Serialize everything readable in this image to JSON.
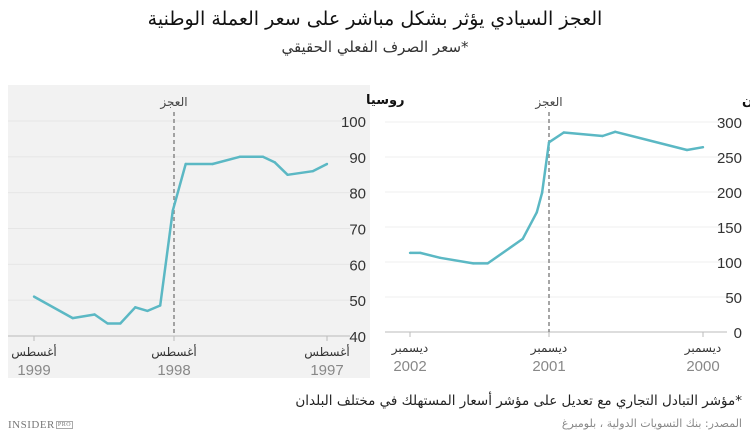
{
  "header": {
    "title": "العجز السيادي يؤثر بشكل مباشر على سعر العملة الوطنية",
    "subtitle": "*سعر الصرف الفعلي الحقيقي"
  },
  "footer": {
    "note": "*مؤشر التبادل التجاري مع تعديل على مؤشر أسعار المستهلك في مختلف البلدان",
    "source": "المصدر: بنك التسويات الدولية ، بلومبرغ",
    "logo": "INSIDER PRO"
  },
  "colors": {
    "line": "#5bb8c4",
    "panel_bg": "#f2f2f2",
    "marker": "#888888"
  },
  "chart_data": [
    {
      "type": "line",
      "title": "روسيا",
      "x_direction": "right-to-left",
      "background": "shaded",
      "ylim": [
        40,
        100
      ],
      "yticks": [
        40,
        50,
        60,
        70,
        80,
        90,
        100
      ],
      "xticks": [
        {
          "date": "1997-08-01",
          "month": "أغسطس",
          "year": "1997"
        },
        {
          "date": "1998-08-01",
          "month": "أغسطس",
          "year": "1998"
        },
        {
          "date": "1999-08-01",
          "month": "أغسطس",
          "year": "1999"
        }
      ],
      "marker": {
        "date": "1998-08-01",
        "label": "العجز"
      },
      "x": [
        "1997-08-01",
        "1997-09-04",
        "1997-11-03",
        "1997-12-04",
        "1998-01-01",
        "1998-02-25",
        "1998-05-01",
        "1998-07-04",
        "1998-08-04",
        "1998-09-06",
        "1998-10-09",
        "1998-11-10",
        "1998-12-19",
        "1999-01-21",
        "1999-02-24",
        "1999-04-22",
        "1999-08-01"
      ],
      "y": [
        88,
        86,
        85,
        88.5,
        90,
        90,
        88,
        88,
        75,
        48.5,
        47,
        48,
        43.5,
        43.5,
        46,
        45,
        51
      ]
    },
    {
      "type": "line",
      "title": "الأرجنتين",
      "x_direction": "right-to-left",
      "background": "white",
      "ylim": [
        0,
        300
      ],
      "yticks": [
        0,
        50,
        100,
        150,
        200,
        250,
        300
      ],
      "xticks": [
        {
          "date": "2000-12-01",
          "month": "ديسمبر",
          "year": "2000"
        },
        {
          "date": "2001-12-01",
          "month": "ديسمبر",
          "year": "2001"
        },
        {
          "date": "2002-12-01",
          "month": "ديسمبر",
          "year": "2002"
        }
      ],
      "marker": {
        "date": "2001-12-01",
        "label": "العجز"
      },
      "x": [
        "2000-12-01",
        "2001-01-08",
        "2001-06-27",
        "2001-07-27",
        "2001-10-27",
        "2001-12-01",
        "2001-12-19",
        "2002-01-02",
        "2002-02-08",
        "2002-05-11",
        "2002-06-18",
        "2002-09-13",
        "2002-11-04",
        "2002-12-01"
      ],
      "y": [
        264,
        260,
        286,
        280,
        285,
        271,
        199,
        171,
        133,
        98,
        98,
        106,
        113,
        113
      ]
    }
  ]
}
